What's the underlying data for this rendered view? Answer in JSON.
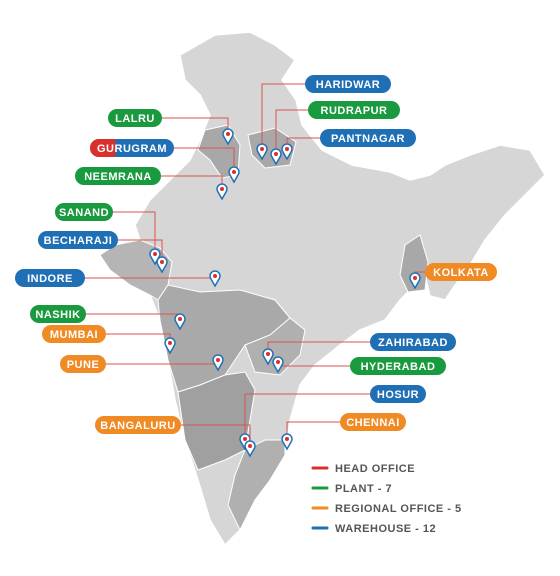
{
  "locations": [
    {
      "label": "HARIDWAR",
      "colors": [
        "#1f6fb5"
      ]
    },
    {
      "label": "RUDRAPUR",
      "colors": [
        "#1a9a3f"
      ]
    },
    {
      "label": "PANTNAGAR",
      "colors": [
        "#1f6fb5"
      ]
    },
    {
      "label": "LALRU",
      "colors": [
        "#1a9a3f"
      ]
    },
    {
      "label": "GURUGRAM",
      "colors": [
        "#d9302c",
        "#1f6fb5"
      ]
    },
    {
      "label": "NEEMRANA",
      "colors": [
        "#1a9a3f"
      ]
    },
    {
      "label": "SANAND",
      "colors": [
        "#1a9a3f"
      ]
    },
    {
      "label": "BECHARAJI",
      "colors": [
        "#1f6fb5"
      ]
    },
    {
      "label": "INDORE",
      "colors": [
        "#1f6fb5"
      ]
    },
    {
      "label": "NASHIK",
      "colors": [
        "#1a9a3f"
      ]
    },
    {
      "label": "MUMBAI",
      "colors": [
        "#f08a24"
      ]
    },
    {
      "label": "PUNE",
      "colors": [
        "#f08a24"
      ]
    },
    {
      "label": "KOLKATA",
      "colors": [
        "#f08a24"
      ]
    },
    {
      "label": "ZAHIRABAD",
      "colors": [
        "#1f6fb5"
      ]
    },
    {
      "label": "HYDERABAD",
      "colors": [
        "#1a9a3f"
      ]
    },
    {
      "label": "HOSUR",
      "colors": [
        "#1f6fb5"
      ]
    },
    {
      "label": "CHENNAI",
      "colors": [
        "#f08a24"
      ]
    },
    {
      "label": "BANGALURU",
      "colors": [
        "#f08a24"
      ]
    }
  ],
  "legend": [
    {
      "label": "HEAD OFFICE",
      "color": "#d9302c"
    },
    {
      "label": "PLANT - 7",
      "color": "#1a9a3f"
    },
    {
      "label": "REGIONAL OFFICE - 5",
      "color": "#f08a24"
    },
    {
      "label": "WAREHOUSE - 12",
      "color": "#1f6fb5"
    }
  ]
}
